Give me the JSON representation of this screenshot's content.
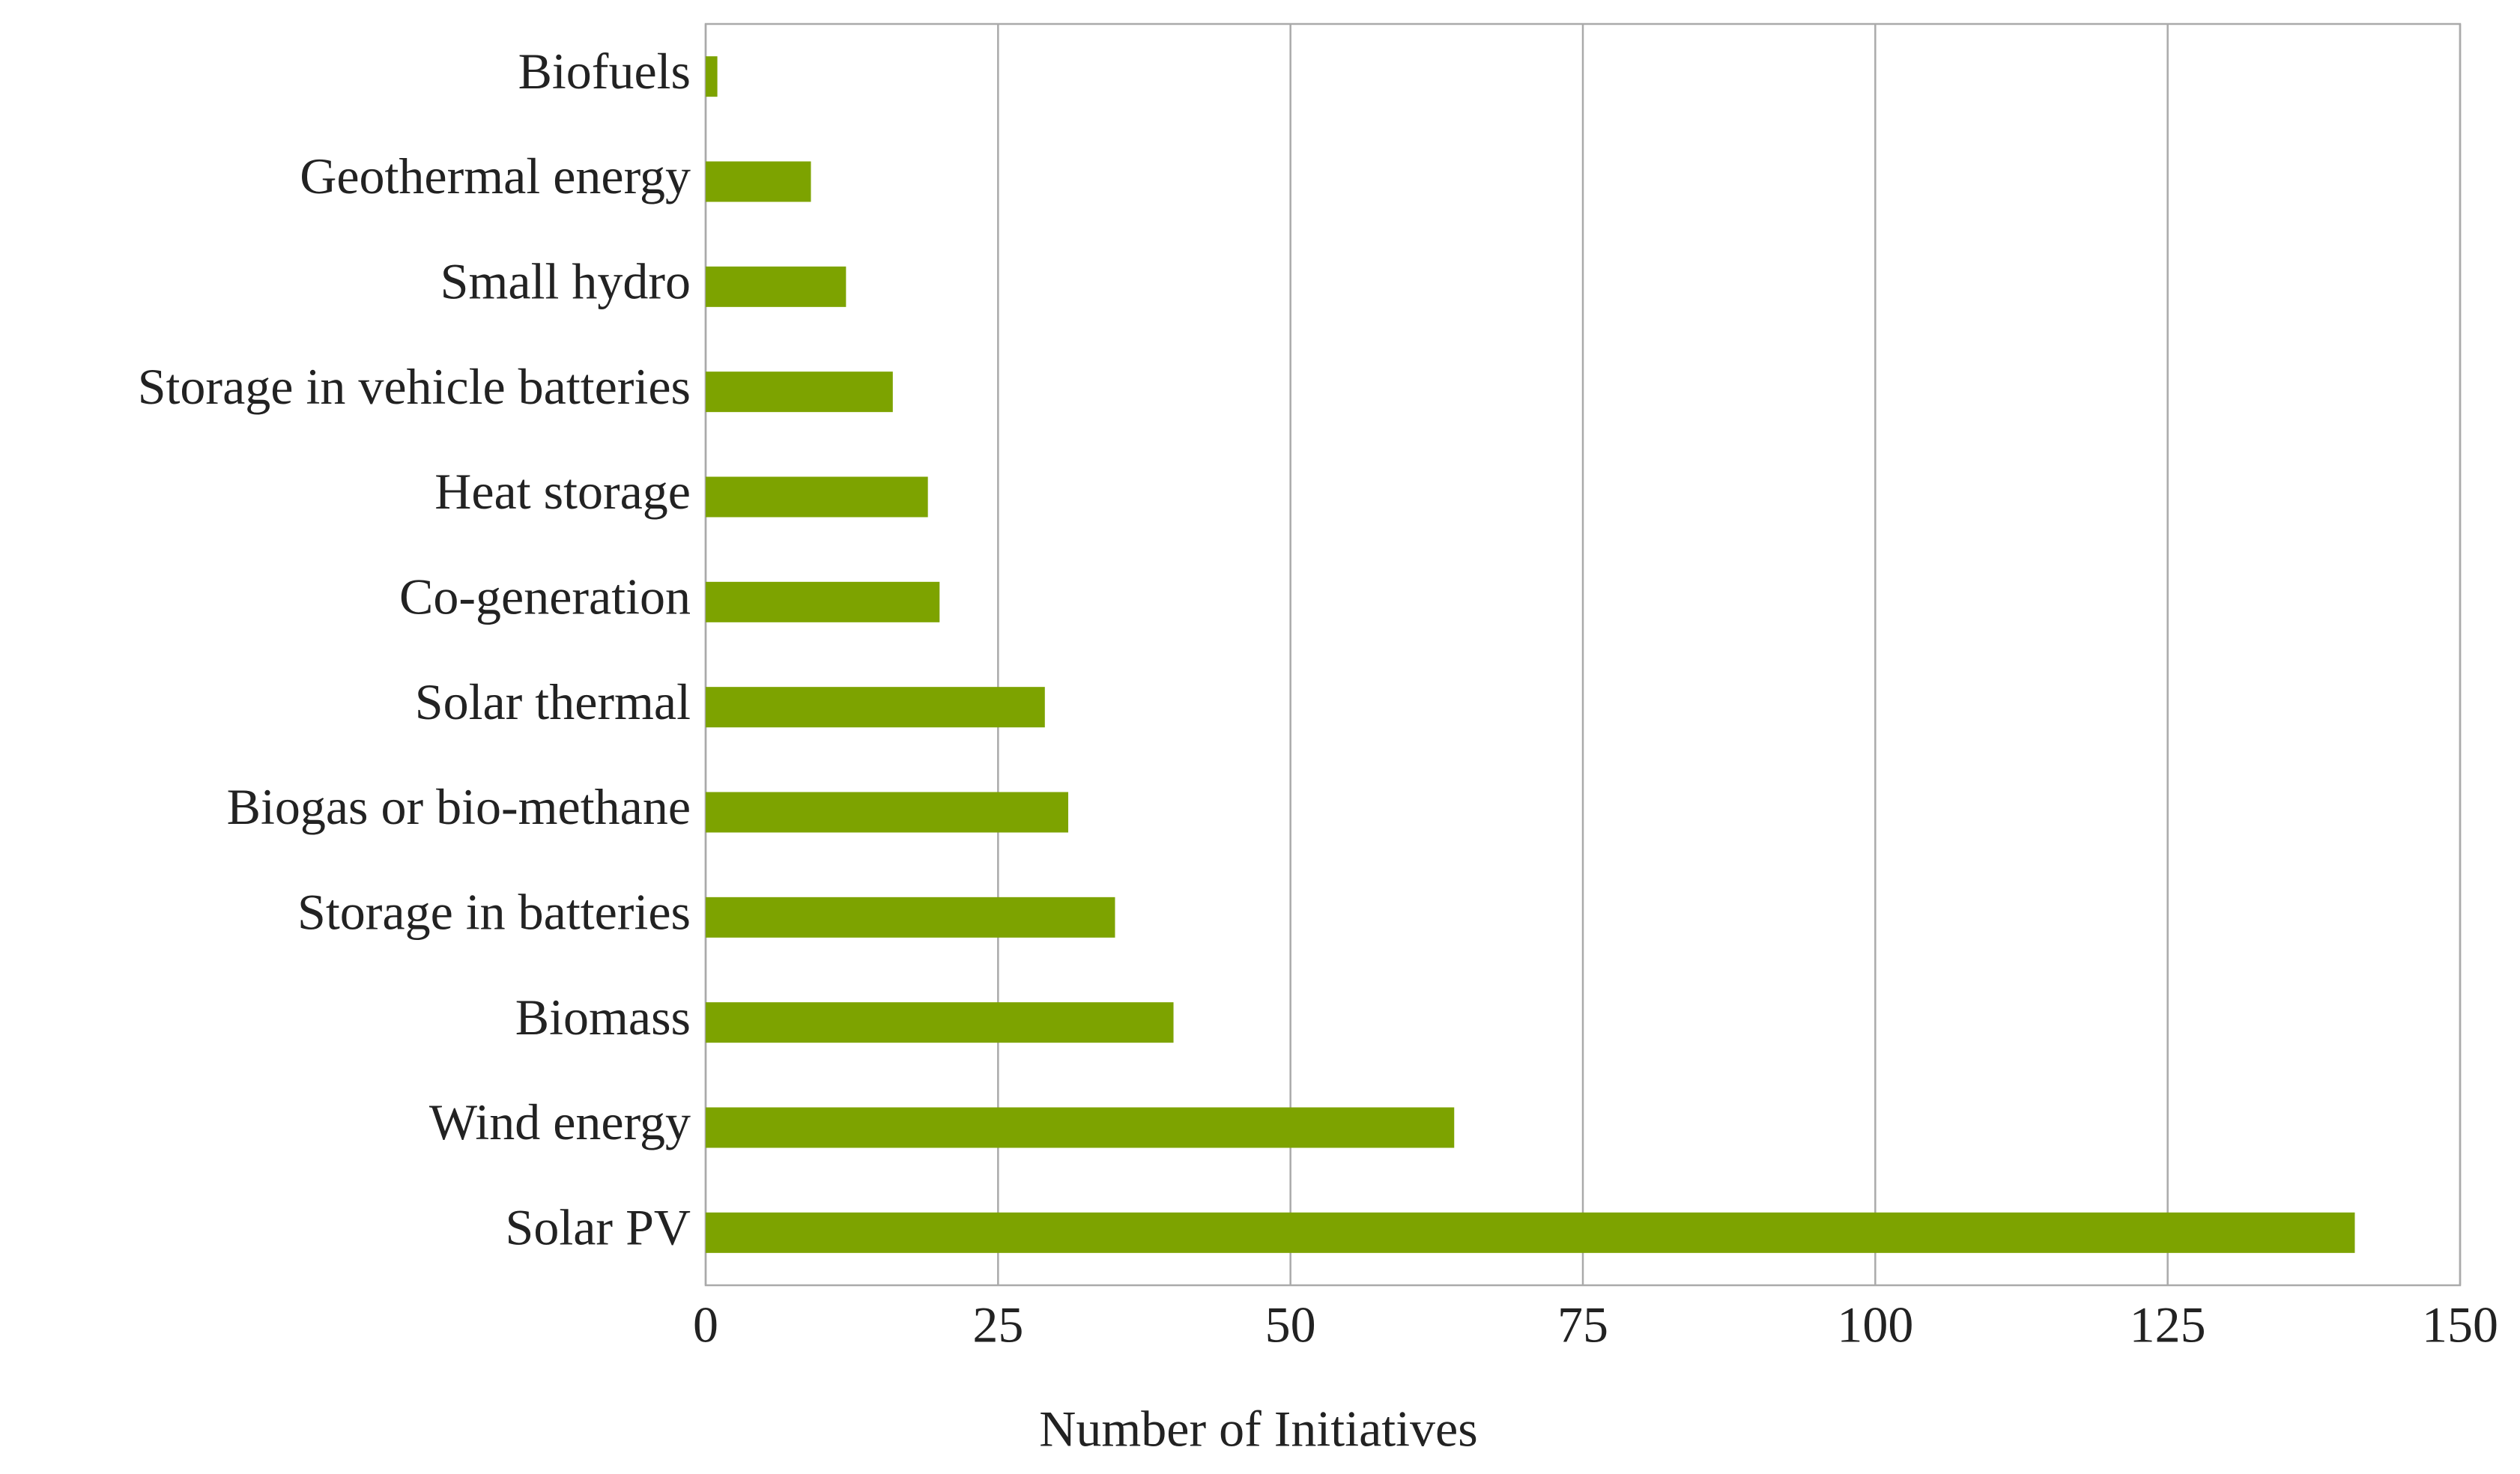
{
  "chart_data": {
    "type": "barh",
    "x_label": "Number of Initiatives",
    "categories": [
      "Biofuels",
      "Geothermal energy",
      "Small hydro",
      "Storage in vehicle batteries",
      "Heat storage",
      "Co-generation",
      "Solar thermal",
      "Biogas or bio-methane",
      "Storage in batteries",
      "Biomass",
      "Wind energy",
      "Solar PV"
    ],
    "values": [
      1,
      9,
      12,
      16,
      19,
      20,
      29,
      31,
      35,
      40,
      64,
      141
    ],
    "color": "#7da300",
    "xlim": [
      0,
      150
    ],
    "xticks": [
      0,
      25,
      50,
      75,
      100,
      125,
      150
    ],
    "grid": true
  }
}
